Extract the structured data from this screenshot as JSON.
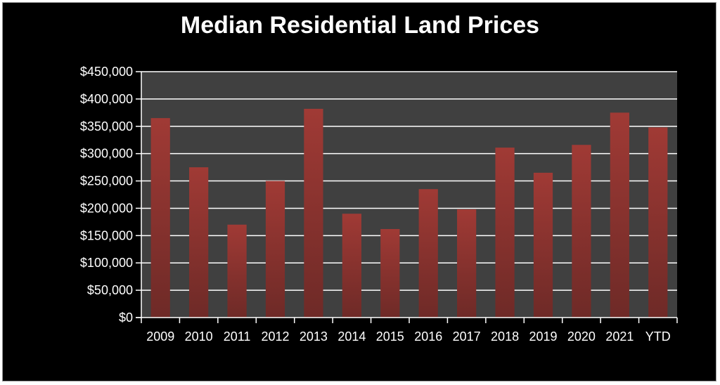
{
  "chart_data": {
    "type": "bar",
    "title": "Median Residential Land Prices",
    "xlabel": "",
    "ylabel": "",
    "categories": [
      "2009",
      "2010",
      "2011",
      "2012",
      "2013",
      "2014",
      "2015",
      "2016",
      "2017",
      "2018",
      "2019",
      "2020",
      "2021",
      "YTD"
    ],
    "values": [
      365000,
      275000,
      170000,
      250000,
      382000,
      190000,
      162000,
      235000,
      198000,
      311000,
      265000,
      316000,
      375000,
      348000
    ],
    "ylim": [
      0,
      450000
    ],
    "yticks": [
      0,
      50000,
      100000,
      150000,
      200000,
      250000,
      300000,
      350000,
      400000,
      450000
    ],
    "ytick_labels": [
      "$0",
      "$50,000",
      "$100,000",
      "$150,000",
      "$200,000",
      "$250,000",
      "$300,000",
      "$350,000",
      "$400,000",
      "$450,000"
    ],
    "grid": true,
    "legend": "none",
    "colors": {
      "background": "#000000",
      "plot_area": "#404040",
      "bar_top": "#a03a35",
      "bar_bottom": "#6e2a27",
      "gridline": "#ffffff",
      "text": "#ffffff"
    }
  }
}
